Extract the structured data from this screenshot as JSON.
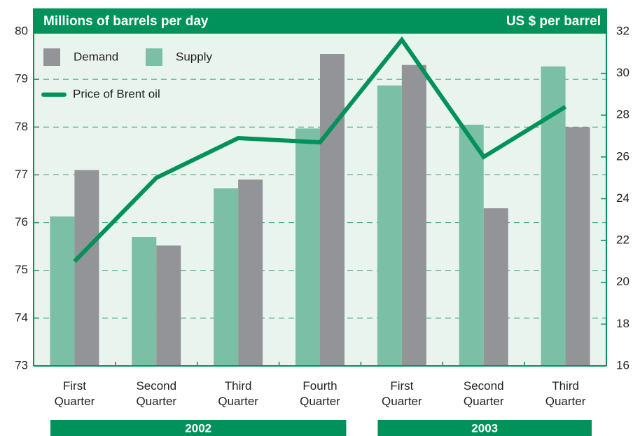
{
  "chart_data": {
    "type": "bar",
    "title": "Millions of barrels per day",
    "y2_title": "US $ per barrel",
    "categories": [
      "First Quarter",
      "Second Quarter",
      "Third Quarter",
      "Fourth Quarter",
      "First Quarter",
      "Second Quarter",
      "Third Quarter"
    ],
    "year_groups": [
      {
        "label": "2002",
        "categories": [
          0,
          3
        ]
      },
      {
        "label": "2003",
        "categories": [
          4,
          6
        ]
      }
    ],
    "series": [
      {
        "name": "Supply",
        "color": "#7bbfa6",
        "values": [
          76.13,
          75.7,
          76.72,
          77.97,
          78.87,
          78.05,
          79.27
        ]
      },
      {
        "name": "Demand",
        "color": "#929497",
        "values": [
          77.1,
          75.52,
          76.9,
          79.53,
          79.3,
          76.3,
          78.0
        ]
      },
      {
        "name": "Price of Brent oil",
        "color": "#00925a",
        "type": "line",
        "axis": "y2",
        "values": [
          21.0,
          25.0,
          26.9,
          26.7,
          31.6,
          26.0,
          28.4
        ]
      }
    ],
    "legend_order": [
      1,
      0,
      2
    ],
    "ylim": [
      73,
      80
    ],
    "yticks": [
      73,
      74,
      75,
      76,
      77,
      78,
      79,
      80
    ],
    "y2lim": [
      16,
      32
    ],
    "y2ticks": [
      16,
      18,
      20,
      22,
      24,
      26,
      28,
      30,
      32
    ],
    "grid": true
  }
}
